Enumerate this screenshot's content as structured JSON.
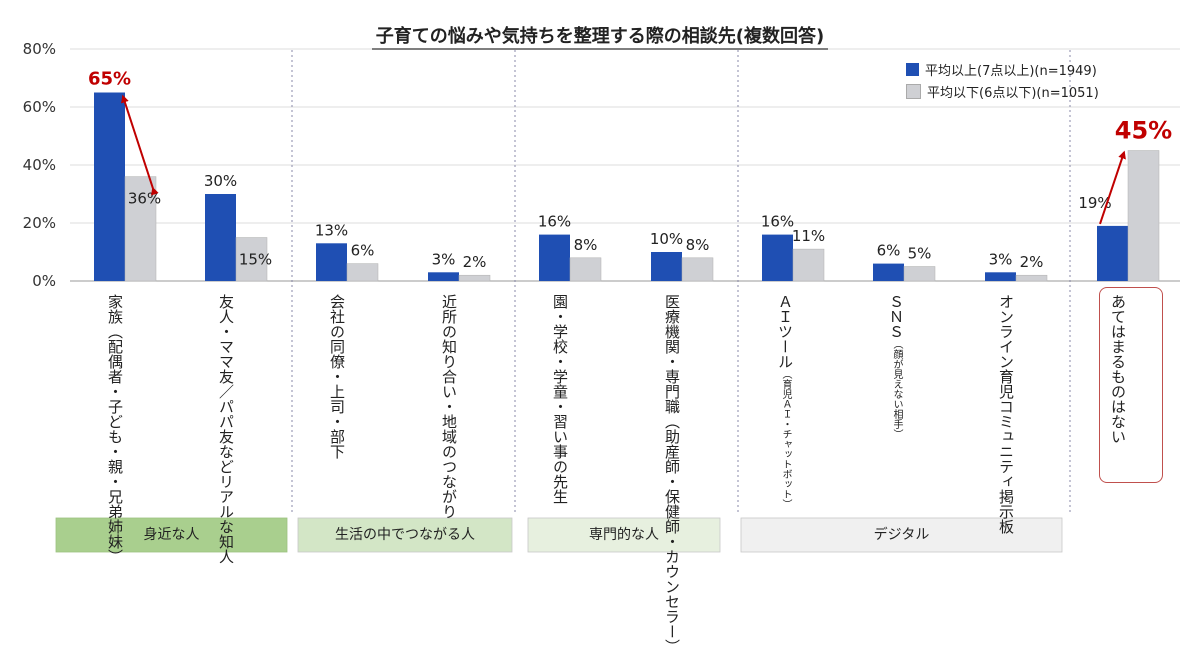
{
  "chart_data": {
    "type": "bar",
    "title": "子育ての悩みや気持ちを整理する際の相談先(複数回答)",
    "ylim": [
      0,
      80
    ],
    "yticks": [
      "0%",
      "20%",
      "40%",
      "60%",
      "80%"
    ],
    "ytick_values": [
      0,
      20,
      40,
      60,
      80
    ],
    "categories": [
      {
        "main": "家族（配偶者・子ども・親・兄弟姉妹）",
        "sub": ""
      },
      {
        "main": "友人・ママ友／パパ友などリアルな知人",
        "sub": ""
      },
      {
        "main": "会社の同僚・上司・部下",
        "sub": ""
      },
      {
        "main": "近所の知り合い・地域のつながり",
        "sub": ""
      },
      {
        "main": "園・学校・学童・習い事の先生",
        "sub": ""
      },
      {
        "main": "医療機関・専門職（助産師・保健師・カウンセラー）",
        "sub": ""
      },
      {
        "main": "ＡＩツール",
        "sub": "（育児ＡＩ・チャットボット）"
      },
      {
        "main": "ＳＮＳ",
        "sub": "（顔が見えない相手）"
      },
      {
        "main": "オンライン育児コミュニティ掲示板",
        "sub": ""
      },
      {
        "main": "あてはまるものはない",
        "sub": ""
      }
    ],
    "series": [
      {
        "name": "平均以上(7点以上)(n=1949)",
        "color": "#1f4fb3",
        "values": [
          65,
          30,
          13,
          3,
          16,
          10,
          16,
          6,
          3,
          19
        ],
        "labels": [
          "65%",
          "30%",
          "13%",
          "3%",
          "16%",
          "10%",
          "16%",
          "6%",
          "3%",
          "19%"
        ]
      },
      {
        "name": "平均以下(6点以下)(n=1051)",
        "color": "#cfd0d4",
        "values": [
          36,
          15,
          6,
          2,
          8,
          8,
          11,
          5,
          2,
          45
        ],
        "labels": [
          "36%",
          "15%",
          "6%",
          "2%",
          "8%",
          "8%",
          "11%",
          "5%",
          "2%",
          "45%"
        ]
      }
    ],
    "groups": [
      {
        "label": "身近な人",
        "color": "#a9cf8e",
        "start": 0,
        "end": 1
      },
      {
        "label": "生活の中でつながる人",
        "color": "#d3e6c6",
        "start": 2,
        "end": 3
      },
      {
        "label": "専門的な人",
        "color": "#e7f0df",
        "start": 4,
        "end": 5
      },
      {
        "label": "デジタル",
        "color": "#f0f0f0",
        "start": 6,
        "end": 8
      }
    ],
    "highlight_color": "#c00000"
  }
}
